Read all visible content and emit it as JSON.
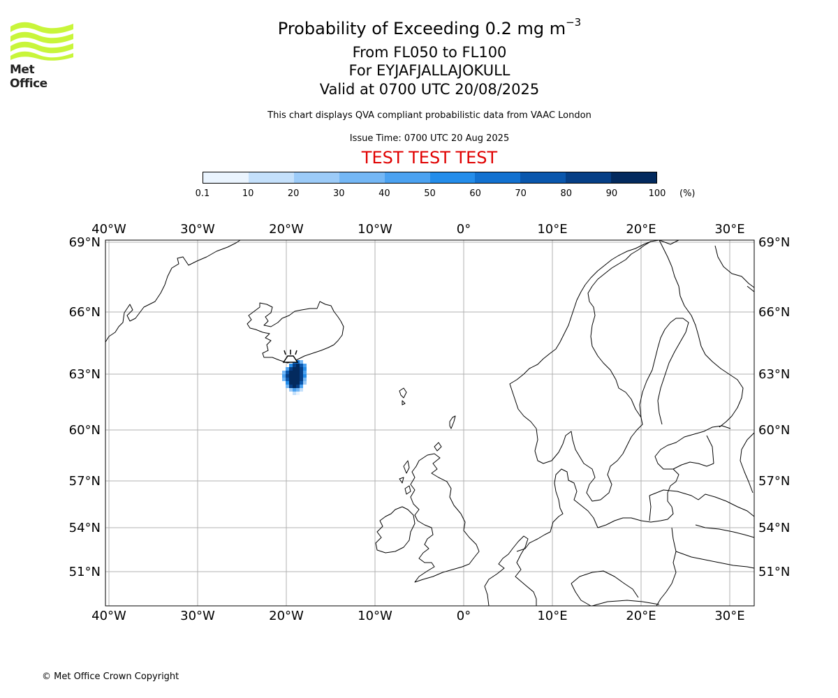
{
  "title": {
    "main": "Probability of Exceeding 0.2 mg m",
    "main_superscript": "−3",
    "flight_levels": "From FL050 to FL100",
    "volcano": "For EYJAFJALLAJOKULL",
    "valid": "Valid at 0700 UTC 20/08/2025"
  },
  "description": "This chart displays QVA compliant probabilistic data from VAAC London",
  "issue_time": "Issue Time: 0700 UTC 20 Aug 2025",
  "test_banner": "TEST TEST TEST",
  "logo": {
    "text": "Met Office",
    "color": "#c8f53a"
  },
  "colorbar": {
    "labels": [
      "0.1",
      "10",
      "20",
      "30",
      "40",
      "50",
      "60",
      "70",
      "80",
      "90",
      "100"
    ],
    "unit": "(%)",
    "colors": [
      "#eaf4fe",
      "#c4e0fb",
      "#9ccbf8",
      "#74b7f5",
      "#4ba2f1",
      "#248dea",
      "#1271d0",
      "#0a57ad",
      "#063f86",
      "#032a5e"
    ]
  },
  "map": {
    "lon_labels": [
      "40°W",
      "30°W",
      "20°W",
      "10°W",
      "0°",
      "10°E",
      "20°E",
      "30°E"
    ],
    "lat_labels": [
      "69°N",
      "66°N",
      "63°N",
      "60°N",
      "57°N",
      "54°N",
      "51°N"
    ],
    "volcano_marker": "volcano-icon",
    "plume_probability_max": 100
  },
  "copyright": "© Met Office Crown Copyright"
}
